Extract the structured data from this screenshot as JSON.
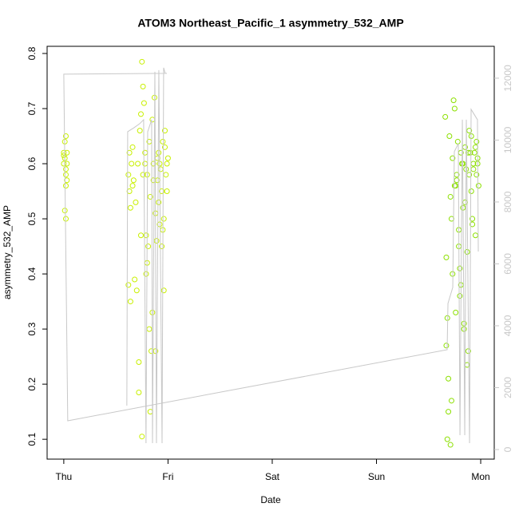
{
  "chart_data": {
    "type": "scatter",
    "title": "ATOM3 Northeast_Pacific_1 asymmetry_532_AMP",
    "x_label": "Date",
    "y_label": "asymmetry_532_AMP",
    "xlim": [
      -0.16,
      4.13
    ],
    "xticks": [
      {
        "value": 0,
        "label": "Thu"
      },
      {
        "value": 1,
        "label": "Fri"
      },
      {
        "value": 2,
        "label": "Sat"
      },
      {
        "value": 3,
        "label": "Sun"
      },
      {
        "value": 4,
        "label": "Mon"
      }
    ],
    "ylim": [
      0.064,
      0.813
    ],
    "yticks": [
      0.1,
      0.2,
      0.3,
      0.4,
      0.5,
      0.6,
      0.7,
      0.8
    ],
    "y2lim": [
      -310,
      13030
    ],
    "y2ticks": [
      0,
      2000,
      4000,
      6000,
      8000,
      10000,
      12000
    ],
    "y2color": "#c8c8c8",
    "series": [
      {
        "color": "#c8f000",
        "x": [
          0.0,
          0.01,
          0.0,
          0.02,
          0.01,
          0.02,
          0.03,
          0.02,
          0.01,
          0.02,
          0.03,
          0.0,
          0.02,
          0.03
        ],
        "values": [
          0.62,
          0.61,
          0.6,
          0.65,
          0.64,
          0.59,
          0.57,
          0.56,
          0.515,
          0.5,
          0.6,
          0.615,
          0.58,
          0.62
        ]
      },
      {
        "color": "#c8f000",
        "x": [
          0.62,
          0.63,
          0.64,
          0.65,
          0.66,
          0.62,
          0.64,
          0.67,
          0.68,
          0.7,
          0.71,
          0.72,
          0.73,
          0.74,
          0.75,
          0.76,
          0.77,
          0.78,
          0.79,
          0.8,
          0.81,
          0.82,
          0.83,
          0.84,
          0.85,
          0.86,
          0.87,
          0.88,
          0.89,
          0.9,
          0.91,
          0.92,
          0.93,
          0.94,
          0.95,
          0.96,
          0.97,
          0.98,
          0.99,
          1.0,
          0.63,
          0.66,
          0.69,
          0.72,
          0.75,
          0.78,
          0.8,
          0.83,
          0.86,
          0.88,
          0.9,
          0.92,
          0.94,
          0.96,
          0.97,
          0.99,
          0.74,
          0.79,
          0.85,
          0.91,
          0.95,
          0.76,
          0.82
        ],
        "values": [
          0.58,
          0.55,
          0.35,
          0.6,
          0.63,
          0.38,
          0.52,
          0.57,
          0.39,
          0.37,
          0.6,
          0.24,
          0.66,
          0.69,
          0.785,
          0.74,
          0.71,
          0.62,
          0.47,
          0.58,
          0.45,
          0.3,
          0.15,
          0.26,
          0.68,
          0.57,
          0.72,
          0.51,
          0.46,
          0.61,
          0.62,
          0.6,
          0.59,
          0.55,
          0.64,
          0.5,
          0.66,
          0.58,
          0.6,
          0.61,
          0.62,
          0.56,
          0.53,
          0.185,
          0.105,
          0.6,
          0.42,
          0.54,
          0.6,
          0.26,
          0.57,
          0.49,
          0.45,
          0.37,
          0.63,
          0.55,
          0.47,
          0.4,
          0.33,
          0.53,
          0.48,
          0.58,
          0.64
        ]
      },
      {
        "color": "#8ce000",
        "x": [
          3.66,
          3.67,
          3.68,
          3.69,
          3.7,
          3.71,
          3.72,
          3.73,
          3.74,
          3.75,
          3.76,
          3.77,
          3.78,
          3.79,
          3.8,
          3.81,
          3.82,
          3.83,
          3.84,
          3.85,
          3.86,
          3.87,
          3.88,
          3.89,
          3.9,
          3.91,
          3.92,
          3.93,
          3.94,
          3.95,
          3.96,
          3.97,
          3.98,
          3.67,
          3.69,
          3.71,
          3.73,
          3.75,
          3.77,
          3.79,
          3.81,
          3.83,
          3.85,
          3.87,
          3.89,
          3.91,
          3.93,
          3.95,
          3.97,
          3.68,
          3.72,
          3.76,
          3.8,
          3.84,
          3.88,
          3.92,
          3.96
        ],
        "values": [
          0.685,
          0.43,
          0.1,
          0.21,
          0.65,
          0.54,
          0.5,
          0.61,
          0.715,
          0.56,
          0.33,
          0.58,
          0.64,
          0.45,
          0.36,
          0.62,
          0.6,
          0.52,
          0.31,
          0.63,
          0.59,
          0.235,
          0.26,
          0.66,
          0.62,
          0.55,
          0.5,
          0.6,
          0.62,
          0.63,
          0.64,
          0.61,
          0.56,
          0.27,
          0.15,
          0.09,
          0.4,
          0.7,
          0.57,
          0.48,
          0.38,
          0.6,
          0.53,
          0.44,
          0.58,
          0.65,
          0.59,
          0.47,
          0.6,
          0.32,
          0.17,
          0.56,
          0.41,
          0.3,
          0.62,
          0.49,
          0.58
        ]
      },
      {
        "type": "line",
        "axis": "y2",
        "color": "#c8c8c8",
        "x": [
          0.605,
          0.613,
          0.674,
          0.728,
          0.766,
          0.789,
          0.805,
          0.843,
          0.851,
          0.874,
          0.889,
          0.912,
          0.943,
          0.958,
          0.973,
          0.989,
          0,
          0.038,
          3.678,
          3.686,
          3.732,
          3.747,
          3.785,
          3.801,
          3.824,
          3.847,
          3.862,
          3.893,
          3.908,
          3.969,
          3.977
        ],
        "values": [
          1419,
          10271,
          10400,
          10529,
          10658,
          206,
          10271,
          10658,
          206,
          12206,
          206,
          12258,
          206,
          12335,
          12155,
          12155,
          12129,
          929,
          3226,
          4723,
          5239,
          9626,
          9884,
          464,
          10658,
          464,
          10658,
          206,
          10993,
          10658,
          6400
        ]
      }
    ]
  }
}
